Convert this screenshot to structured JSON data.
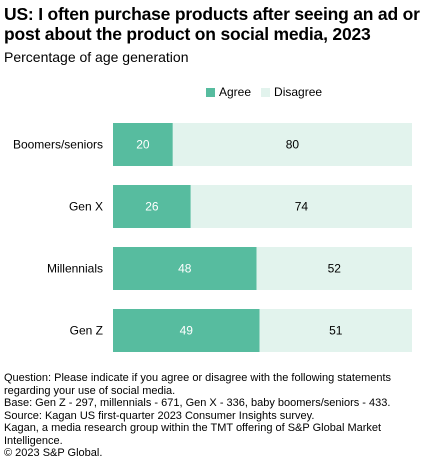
{
  "header": {
    "title": "US: I often purchase products after seeing an ad or post about the product on social media, 2023",
    "subtitle": "Percentage of age generation"
  },
  "colors": {
    "agree": "#57bc9f",
    "disagree": "#e2f3ed",
    "agree_label": "#ffffff",
    "disagree_label": "#000000"
  },
  "chart_data": {
    "type": "bar",
    "orientation": "horizontal",
    "stacked": true,
    "categories": [
      "Boomers/seniors",
      "Gen X",
      "Millennials",
      "Gen Z"
    ],
    "series": [
      {
        "name": "Agree",
        "values": [
          20,
          26,
          48,
          49
        ]
      },
      {
        "name": "Disagree",
        "values": [
          80,
          74,
          52,
          51
        ]
      }
    ],
    "xlim": [
      0,
      100
    ],
    "legend_position": "top",
    "grid": false
  },
  "footer": {
    "lines": [
      "Question: Please indicate if you agree or disagree with the following statements",
      "regarding your use of social media.",
      "Base: Gen Z - 297, millennials - 671, Gen X - 336, baby boomers/seniors - 433.",
      "Source: Kagan US first-quarter 2023 Consumer Insights survey.",
      "Kagan, a media research group within the TMT offering of S&P Global Market",
      "Intelligence.",
      "© 2023 S&P Global."
    ]
  }
}
